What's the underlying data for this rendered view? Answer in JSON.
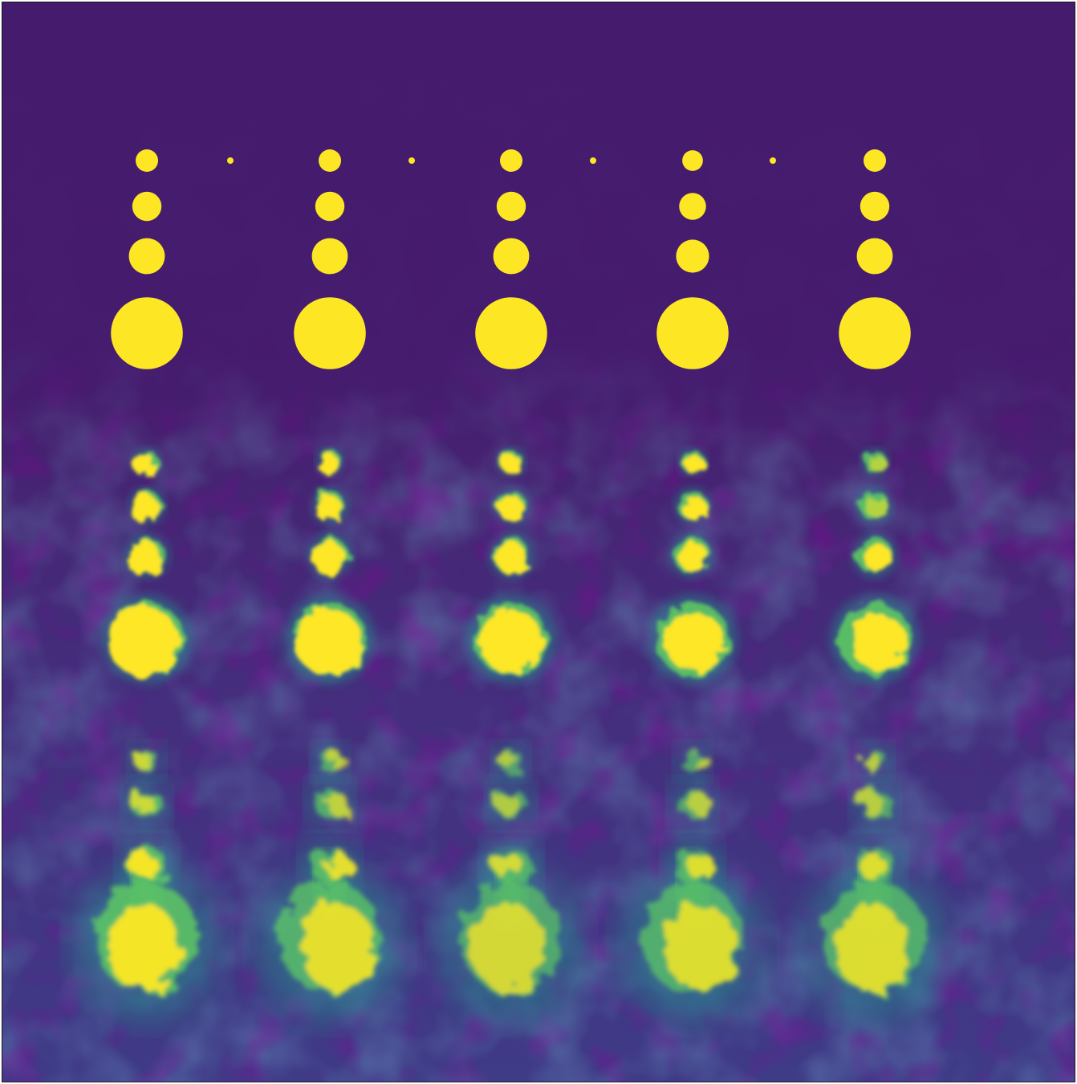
{
  "image": {
    "kind": "fluorescence-heatmap",
    "colormap": "viridis",
    "colors": {
      "background_dark": "#440154",
      "background_mid": "#46206f",
      "background_light": "#3b3f8a",
      "spot_core": "#fde725",
      "spot_halo": "#5dc863",
      "spot_edge": "#21918c"
    },
    "grid": {
      "columns": 5,
      "blocks": 3,
      "spots_per_block": 4,
      "blocks_detail": [
        {
          "name": "top",
          "spot_quality": "sharp"
        },
        {
          "name": "middle",
          "spot_quality": "slightly-diffuse"
        },
        {
          "name": "bottom",
          "spot_quality": "diffuse"
        }
      ],
      "spot_relative_sizes": [
        1,
        1.3,
        1.6,
        3.2
      ],
      "bottom_block_intensity": [
        1,
        0.9,
        0.8,
        0.85,
        0.85
      ]
    }
  }
}
